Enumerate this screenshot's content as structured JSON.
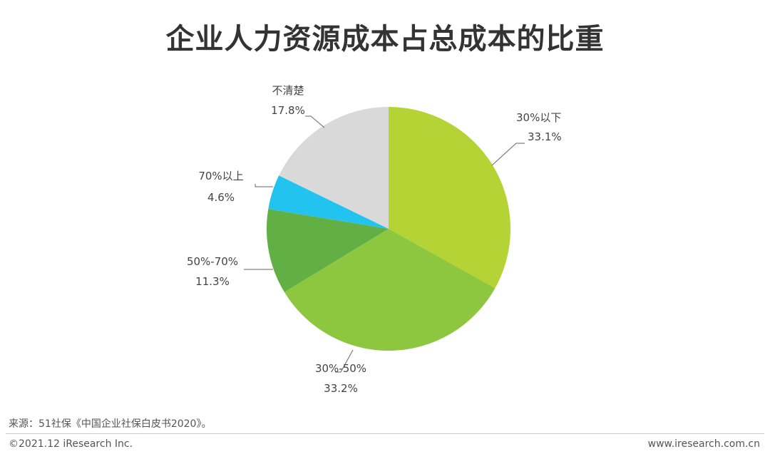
{
  "title": "企业人力资源成本占总成本的比重",
  "footer": {
    "source": "来源：51社保《中国企业社保白皮书2020》。",
    "copyright": "©2021.12 iResearch Inc.",
    "website": "www.iresearch.com.cn"
  },
  "chart_data": {
    "type": "pie",
    "start_angle_deg": 0,
    "direction": "clockwise",
    "slices": [
      {
        "label": "30%以下",
        "value": 33.1,
        "value_label": "33.1%",
        "color": "#b5d334"
      },
      {
        "label": "30%-50%",
        "value": 33.2,
        "value_label": "33.2%",
        "color": "#8dc63f"
      },
      {
        "label": "50%-70%",
        "value": 11.3,
        "value_label": "11.3%",
        "color": "#62b045"
      },
      {
        "label": "70%以上",
        "value": 4.6,
        "value_label": "4.6%",
        "color": "#22c3ee"
      },
      {
        "label": "不清楚",
        "value": 17.8,
        "value_label": "17.8%",
        "color": "#d9d9d9"
      }
    ]
  }
}
